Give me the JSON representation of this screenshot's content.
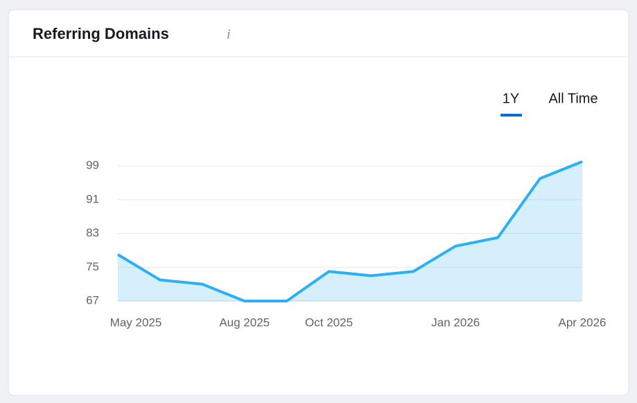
{
  "chart_data": {
    "type": "line",
    "title": "Referring Domains",
    "tabs": [
      "1Y",
      "All Time"
    ],
    "categories": [
      "May 2025",
      null,
      null,
      "Aug 2025",
      null,
      "Oct 2025",
      null,
      null,
      "Jan 2026",
      null,
      null,
      "Apr 2026"
    ],
    "series": [
      {
        "name": "Referring Domains",
        "color": "#2bb0f7",
        "values": [
          78,
          72,
          71,
          67,
          67,
          74,
          73,
          74,
          80,
          82,
          96,
          100
        ]
      }
    ],
    "ylim": [
      67,
      100
    ],
    "yticks": [
      67,
      75,
      83,
      91,
      99
    ],
    "grid": true
  }
}
